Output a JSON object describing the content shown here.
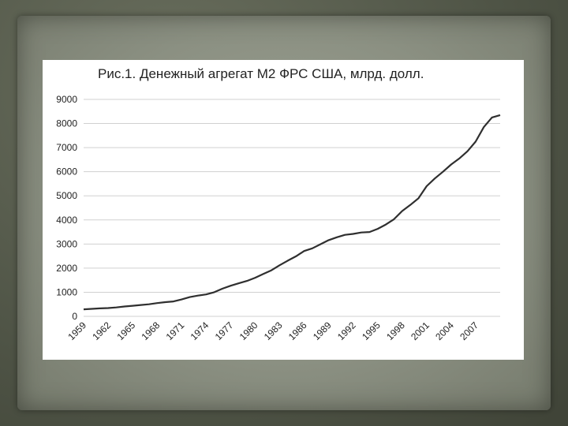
{
  "chart_data": {
    "type": "line",
    "title": "Рис.1. Денежный агрегат M2 ФРС США, млрд. долл.",
    "xlabel": "",
    "ylabel": "",
    "ylim": [
      0,
      9000
    ],
    "yticks": [
      0,
      1000,
      2000,
      3000,
      4000,
      5000,
      6000,
      7000,
      8000,
      9000
    ],
    "xticks": [
      1959,
      1962,
      1965,
      1968,
      1971,
      1974,
      1977,
      1980,
      1983,
      1986,
      1989,
      1992,
      1995,
      1998,
      2001,
      2004,
      2007
    ],
    "xlim": [
      1959,
      2010
    ],
    "grid": "horizontal",
    "legend": "none",
    "line_color": "#2f2f2f",
    "x": [
      1959,
      1960,
      1961,
      1962,
      1963,
      1964,
      1965,
      1966,
      1967,
      1968,
      1969,
      1970,
      1971,
      1972,
      1973,
      1974,
      1975,
      1976,
      1977,
      1978,
      1979,
      1980,
      1981,
      1982,
      1983,
      1984,
      1985,
      1986,
      1987,
      1988,
      1989,
      1990,
      1991,
      1992,
      1993,
      1994,
      1995,
      1996,
      1997,
      1998,
      1999,
      2000,
      2001,
      2002,
      2003,
      2004,
      2005,
      2006,
      2007,
      2008,
      2009,
      2010
    ],
    "y": [
      290,
      310,
      330,
      345,
      370,
      410,
      440,
      470,
      500,
      550,
      590,
      620,
      700,
      800,
      860,
      910,
      1000,
      1150,
      1270,
      1370,
      1470,
      1600,
      1760,
      1910,
      2120,
      2310,
      2490,
      2710,
      2820,
      2990,
      3160,
      3280,
      3380,
      3420,
      3480,
      3500,
      3630,
      3810,
      4030,
      4370,
      4620,
      4900,
      5400,
      5720,
      6000,
      6300,
      6550,
      6850,
      7250,
      7850,
      8250,
      8350
    ]
  }
}
